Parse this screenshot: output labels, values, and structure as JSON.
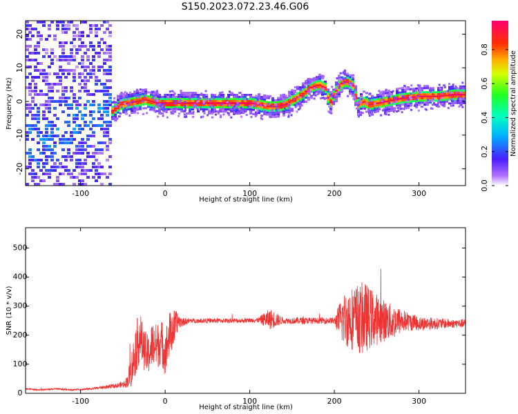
{
  "title": "S150.2023.072.23.46.G06",
  "chart_data": [
    {
      "type": "heatmap",
      "xlabel": "Height of straight line (km)",
      "ylabel": "Frequency (Hz)",
      "xlim": [
        -165,
        355
      ],
      "ylim": [
        -25,
        24
      ],
      "xticks": [
        -100,
        0,
        100,
        200,
        300
      ],
      "xtick_labels": [
        "-100",
        "0",
        "100",
        "200",
        "300"
      ],
      "yticks": [
        -20,
        -10,
        0,
        10,
        20
      ],
      "ytick_labels": [
        "-20",
        "-10",
        "0",
        "10",
        "20"
      ],
      "colorbar": {
        "label": "Normalized spectral amplitude",
        "range": [
          0,
          0.97
        ],
        "ticks": [
          0.0,
          0.2,
          0.4,
          0.6,
          0.8
        ],
        "tick_labels": [
          "0.0",
          "0.2",
          "0.4",
          "0.6",
          "0.8"
        ],
        "colormap": "rainbow"
      },
      "ridge": {
        "x": [
          -65,
          -55,
          -45,
          -35,
          -25,
          -10,
          0,
          20,
          40,
          60,
          80,
          100,
          110,
          120,
          130,
          140,
          150,
          160,
          170,
          180,
          188,
          193,
          198,
          205,
          212,
          220,
          226,
          232,
          240,
          260,
          280,
          300,
          320,
          340,
          355
        ],
        "y": [
          -3,
          -1,
          -0.5,
          0,
          0.5,
          -0.5,
          -0.5,
          -0.5,
          -0.5,
          -0.5,
          -0.5,
          -0.5,
          -1,
          -1.5,
          -1.5,
          -1,
          0.5,
          2,
          4,
          5,
          4,
          -1,
          2,
          5,
          6,
          5,
          -1,
          0,
          -1,
          0,
          1,
          1.5,
          1.5,
          2,
          2
        ]
      },
      "background": "white"
    },
    {
      "type": "line",
      "xlabel": "Height of straight line (km)",
      "ylabel": "SNR (10 * v/v)",
      "xlim": [
        -165,
        355
      ],
      "ylim": [
        0,
        570
      ],
      "xticks": [
        -100,
        0,
        100,
        200,
        300
      ],
      "xtick_labels": [
        "-100",
        "0",
        "100",
        "200",
        "300"
      ],
      "yticks": [
        0,
        100,
        200,
        300,
        400,
        500
      ],
      "ytick_labels": [
        "0",
        "100",
        "200",
        "300",
        "400",
        "500"
      ],
      "series": [
        {
          "color": "#ee3333",
          "x": [
            -165,
            -150,
            -130,
            -110,
            -90,
            -75,
            -60,
            -50,
            -45,
            -40,
            -35,
            -30,
            -25,
            -20,
            -15,
            -10,
            -5,
            0,
            5,
            10,
            15,
            20,
            30,
            50,
            70,
            90,
            110,
            120,
            125,
            140,
            160,
            180,
            200,
            210,
            220,
            230,
            235,
            240,
            250,
            260,
            270,
            280,
            290,
            300,
            320,
            340,
            355
          ],
          "y": [
            15,
            12,
            15,
            12,
            15,
            20,
            25,
            30,
            40,
            80,
            150,
            200,
            150,
            130,
            170,
            160,
            180,
            140,
            200,
            220,
            250,
            245,
            250,
            250,
            250,
            250,
            252,
            255,
            255,
            250,
            250,
            250,
            250,
            255,
            260,
            255,
            260,
            260,
            255,
            250,
            245,
            250,
            245,
            240,
            240,
            240,
            240
          ],
          "noise": [
            3,
            3,
            3,
            3,
            4,
            5,
            8,
            10,
            20,
            60,
            90,
            90,
            70,
            70,
            80,
            80,
            80,
            80,
            80,
            70,
            30,
            15,
            8,
            8,
            8,
            8,
            8,
            30,
            35,
            10,
            12,
            10,
            12,
            90,
            110,
            120,
            130,
            110,
            90,
            70,
            60,
            40,
            30,
            25,
            20,
            15,
            15
          ]
        }
      ],
      "background": "white"
    }
  ]
}
